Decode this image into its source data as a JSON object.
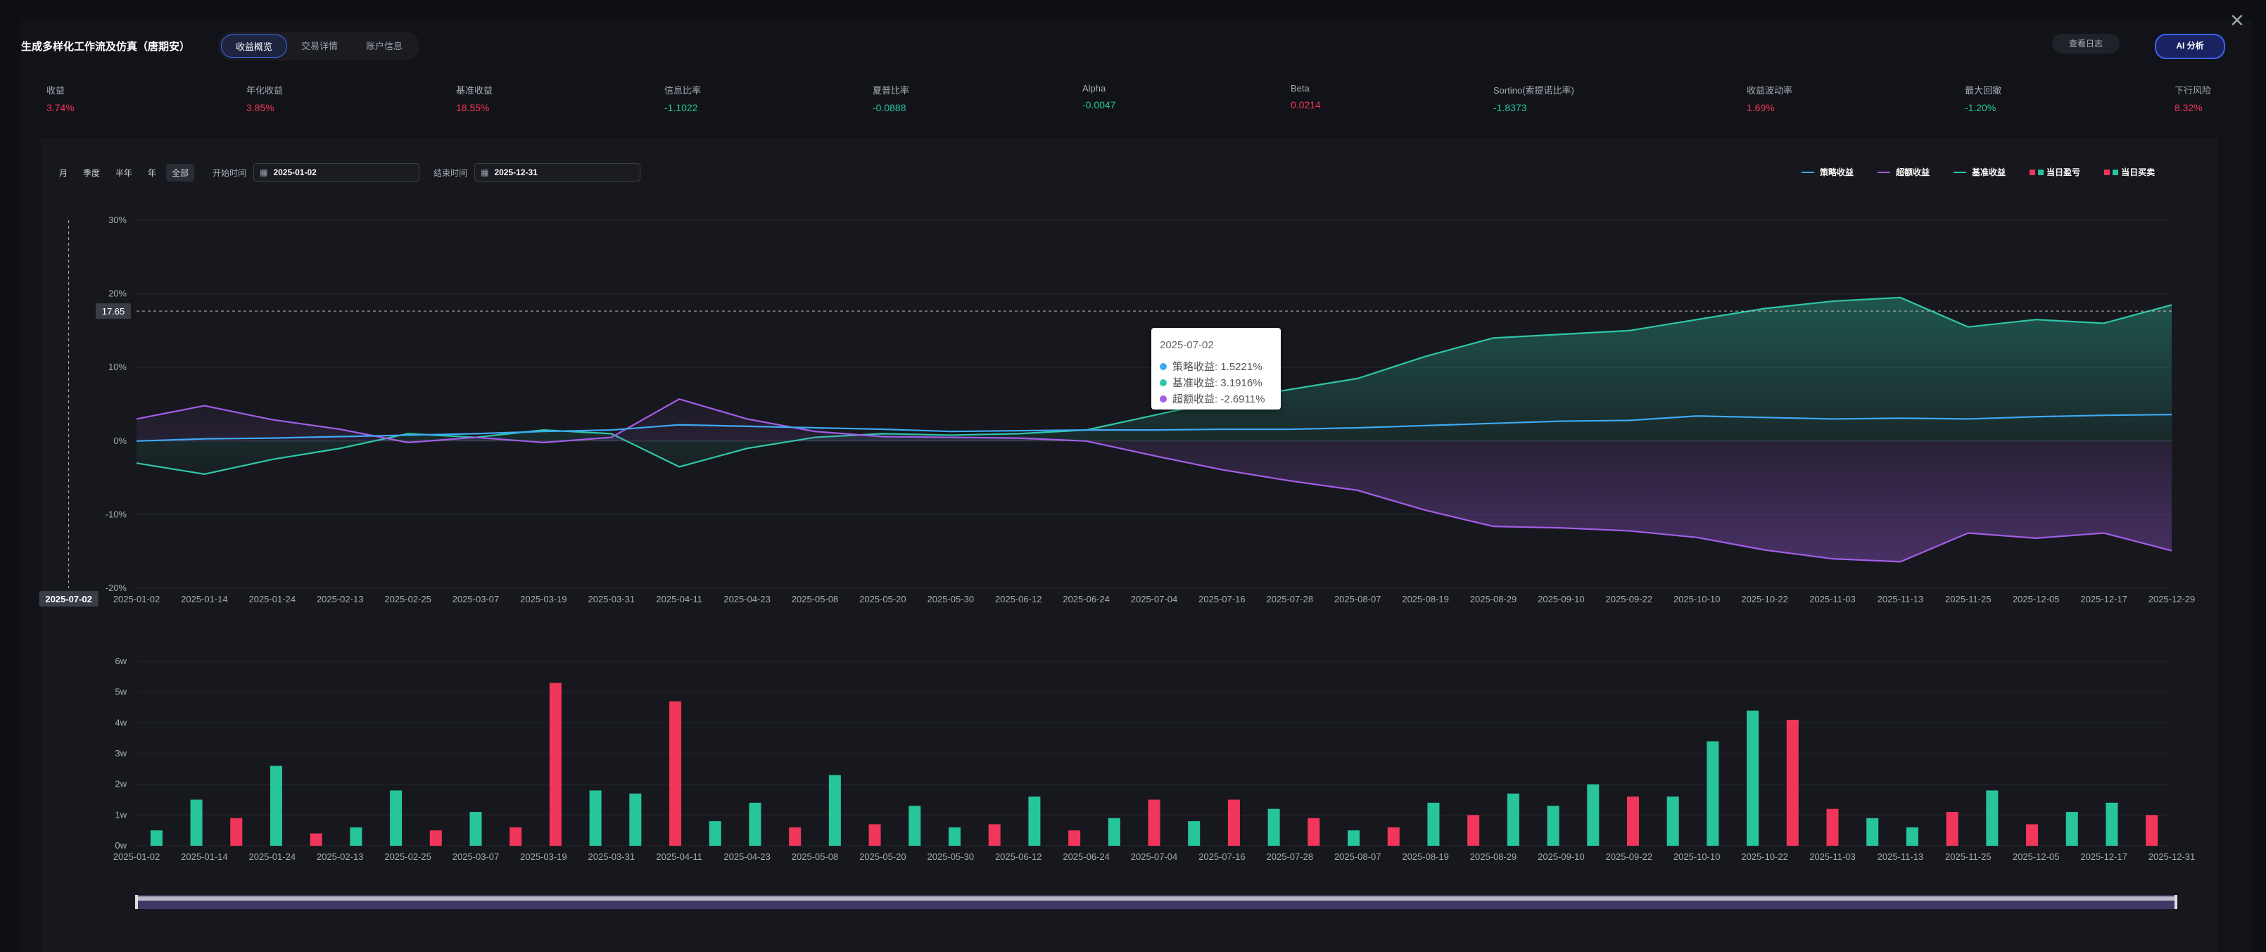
{
  "header": {
    "title": "生成多样化工作流及仿真（唐期安）",
    "tabs": [
      "收益概览",
      "交易详情",
      "账户信息"
    ],
    "active_tab": 0,
    "log_button": "查看日志",
    "ai_button": "AI 分析"
  },
  "metrics": [
    {
      "label": "收益",
      "value": "3.74%",
      "tone": "red"
    },
    {
      "label": "年化收益",
      "value": "3.85%",
      "tone": "red"
    },
    {
      "label": "基准收益",
      "value": "18.55%",
      "tone": "red"
    },
    {
      "label": "信息比率",
      "value": "-1.1022",
      "tone": "green"
    },
    {
      "label": "夏普比率",
      "value": "-0.0888",
      "tone": "green"
    },
    {
      "label": "Alpha",
      "value": "-0.0047",
      "tone": "green"
    },
    {
      "label": "Beta",
      "value": "0.0214",
      "tone": "red"
    },
    {
      "label": "Sortino(索提诺比率)",
      "value": "-1.8373",
      "tone": "green"
    },
    {
      "label": "收益波动率",
      "value": "1.69%",
      "tone": "red"
    },
    {
      "label": "最大回撤",
      "value": "-1.20%",
      "tone": "green"
    },
    {
      "label": "下行风险",
      "value": "8.32%",
      "tone": "red"
    }
  ],
  "toolbar": {
    "periods": [
      "月",
      "季度",
      "半年",
      "年",
      "全部"
    ],
    "active_period": 4,
    "start_label": "开始时间",
    "start_date": "2025-01-02",
    "end_label": "结束时间",
    "end_date": "2025-12-31"
  },
  "legend": [
    {
      "label": "策略收益",
      "color": "#3fa9f5",
      "kind": "line"
    },
    {
      "label": "超额收益",
      "color": "#a35ee8",
      "kind": "line"
    },
    {
      "label": "基准收益",
      "color": "#2fc7a8",
      "kind": "line"
    },
    {
      "label": "当日盈亏",
      "colors": [
        "#f0365a",
        "#26c59a"
      ],
      "kind": "square"
    },
    {
      "label": "当日买卖",
      "colors": [
        "#f0365a",
        "#26c59a"
      ],
      "kind": "square"
    }
  ],
  "colors": {
    "strategy": "#3fa9f5",
    "excess": "#a35ee8",
    "benchmark": "#2fc7a8",
    "up": "#f0365a",
    "down": "#26c59a"
  },
  "cursor": {
    "y_readout": "17.65",
    "x_readout": "2025-07-02"
  },
  "tooltip": {
    "date": "2025-07-02",
    "rows": [
      {
        "text": "策略收益: 1.5221%",
        "color": "#3fa9f5"
      },
      {
        "text": "基准收益: 3.1916%",
        "color": "#2fc7a8"
      },
      {
        "text": "超额收益: -2.6911%",
        "color": "#a35ee8"
      }
    ]
  },
  "chart_data": [
    {
      "type": "line",
      "x_tick_labels": [
        "2025-01-02",
        "2025-01-14",
        "2025-01-24",
        "2025-02-13",
        "2025-02-25",
        "2025-03-07",
        "2025-03-19",
        "2025-03-31",
        "2025-04-11",
        "2025-04-23",
        "2025-05-08",
        "2025-05-20",
        "2025-05-30",
        "2025-06-12",
        "2025-06-24",
        "2025-07-04",
        "2025-07-16",
        "2025-07-28",
        "2025-08-07",
        "2025-08-19",
        "2025-08-29",
        "2025-09-10",
        "2025-09-22",
        "2025-10-10",
        "2025-10-22",
        "2025-11-03",
        "2025-11-13",
        "2025-11-25",
        "2025-12-05",
        "2025-12-17",
        "2025-12-29"
      ],
      "y_tick_labels": [
        "30%",
        "20%",
        "10%",
        "0%",
        "-10%",
        "-20%"
      ],
      "ylim": [
        -20,
        30
      ],
      "grid": true,
      "legend_position": "top-right",
      "series": [
        {
          "name": "策略收益",
          "key": "strategy",
          "values": [
            0.0,
            0.3,
            0.4,
            0.6,
            0.8,
            1.0,
            1.3,
            1.5,
            2.2,
            2.0,
            1.8,
            1.6,
            1.3,
            1.4,
            1.5,
            1.5,
            1.6,
            1.6,
            1.8,
            2.1,
            2.4,
            2.7,
            2.8,
            3.4,
            3.2,
            3.0,
            3.1,
            3.0,
            3.3,
            3.5,
            3.6
          ]
        },
        {
          "name": "基准收益",
          "key": "benchmark",
          "values": [
            -3.0,
            -4.5,
            -2.5,
            -1.0,
            1.0,
            0.5,
            1.5,
            1.0,
            -3.5,
            -1.0,
            0.5,
            1.0,
            0.8,
            1.0,
            1.5,
            3.5,
            5.5,
            7.0,
            8.5,
            11.5,
            14.0,
            14.5,
            15.0,
            16.5,
            18.0,
            19.0,
            19.5,
            15.5,
            16.5,
            16.0,
            18.5
          ]
        },
        {
          "name": "超额收益",
          "key": "excess",
          "values": [
            3.0,
            4.8,
            2.9,
            1.6,
            -0.2,
            0.5,
            -0.2,
            0.5,
            5.7,
            3.0,
            1.3,
            0.6,
            0.5,
            0.4,
            0.0,
            -2.0,
            -3.9,
            -5.4,
            -6.7,
            -9.4,
            -11.6,
            -11.8,
            -12.2,
            -13.1,
            -14.8,
            -16.0,
            -16.4,
            -12.5,
            -13.2,
            -12.5,
            -14.9
          ]
        }
      ]
    },
    {
      "type": "bar",
      "x_tick_labels": [
        "2025-01-02",
        "2025-01-14",
        "2025-01-24",
        "2025-02-13",
        "2025-02-25",
        "2025-03-07",
        "2025-03-19",
        "2025-03-31",
        "2025-04-11",
        "2025-04-23",
        "2025-05-08",
        "2025-05-20",
        "2025-05-30",
        "2025-06-12",
        "2025-06-24",
        "2025-07-04",
        "2025-07-16",
        "2025-07-28",
        "2025-08-07",
        "2025-08-19",
        "2025-08-29",
        "2025-09-10",
        "2025-09-22",
        "2025-10-10",
        "2025-10-22",
        "2025-11-03",
        "2025-11-13",
        "2025-11-25",
        "2025-12-05",
        "2025-12-17",
        "2025-12-31"
      ],
      "y_tick_labels": [
        "6w",
        "5w",
        "4w",
        "3w",
        "2w",
        "1w",
        "0w"
      ],
      "ylim": [
        0,
        6
      ],
      "y_unit": "w",
      "grid": true,
      "values": [
        0.5,
        1.5,
        0.9,
        2.6,
        0.4,
        0.6,
        1.8,
        0.5,
        1.1,
        0.6,
        5.3,
        1.8,
        1.7,
        4.7,
        0.8,
        1.4,
        0.6,
        2.3,
        0.7,
        1.3,
        0.6,
        0.7,
        1.6,
        0.5,
        0.9,
        1.5,
        0.8,
        1.5,
        1.2,
        0.9,
        0.5,
        0.6,
        1.4,
        1.0,
        1.7,
        1.3,
        2.0,
        1.6,
        1.6,
        3.4,
        4.4,
        4.1,
        1.2,
        0.9,
        0.6,
        1.1,
        1.8,
        0.7,
        1.1,
        1.4,
        1.0
      ],
      "up": [
        false,
        false,
        true,
        false,
        true,
        false,
        false,
        true,
        false,
        true,
        true,
        false,
        false,
        true,
        false,
        false,
        true,
        false,
        true,
        false,
        false,
        true,
        false,
        true,
        false,
        true,
        false,
        true,
        false,
        true,
        false,
        true,
        false,
        true,
        false,
        false,
        false,
        true,
        false,
        false,
        false,
        true,
        true,
        false,
        false,
        true,
        false,
        true,
        false,
        false,
        true
      ]
    }
  ]
}
